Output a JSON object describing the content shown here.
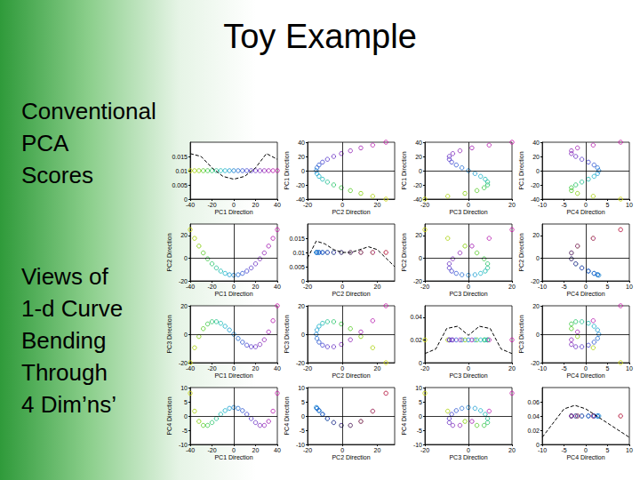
{
  "slide": {
    "title": "Toy Example",
    "text_blocks": [
      [
        "Conventional",
        "PCA",
        "Scores"
      ],
      [
        "Views of",
        "1-d Curve",
        "Bending",
        "Through",
        "4 Dim’ns’"
      ]
    ]
  },
  "chart_data": {
    "type": "scatter_matrix",
    "grid": false,
    "marker": "open_circle",
    "line_style": "dashed",
    "colors": [
      "#c8d400",
      "#a8d000",
      "#7fcc00",
      "#4fc81a",
      "#2ec43a",
      "#1cc060",
      "#14bc88",
      "#10b8b0",
      "#10b0c8",
      "#1098d0",
      "#1480d0",
      "#1c68d0",
      "#2850d0",
      "#3c3cd0",
      "#5030c8",
      "#6428c0",
      "#7820b8",
      "#8c1cb4",
      "#a018b0",
      "#b414ac",
      "#c810a8"
    ],
    "dimensions": [
      {
        "name": "PC1 Direction",
        "lim": [
          -40,
          40
        ],
        "ticks": [
          -40,
          -20,
          0,
          20,
          40
        ],
        "values": [
          -40,
          -36,
          -32,
          -28,
          -24,
          -20,
          -16,
          -12,
          -8,
          -4,
          0,
          4,
          8,
          12,
          16,
          20,
          24,
          28,
          32,
          36,
          40
        ],
        "density": {
          "x": [
            -40,
            -30,
            -20,
            -10,
            0,
            10,
            20,
            30,
            40
          ],
          "y": [
            0.016,
            0.015,
            0.011,
            0.008,
            0.007,
            0.008,
            0.011,
            0.016,
            0.014
          ],
          "ylim": [
            0,
            0.02
          ],
          "yticks": [
            0,
            0.005,
            0.01,
            0.015
          ],
          "point_height": 0.01
        }
      },
      {
        "name": "PC2 Direction",
        "lim": [
          -20,
          30
        ],
        "ticks": [
          -20,
          0,
          20
        ],
        "values": [
          25,
          17.4,
          10.6,
          4.6,
          -0.6,
          -5,
          -8.6,
          -11.4,
          -13.4,
          -14.6,
          -15,
          -14.6,
          -13.4,
          -11.4,
          -8.6,
          -5,
          -0.6,
          4.6,
          10.6,
          17.4,
          25
        ],
        "density": {
          "x": [
            -20,
            -15,
            -10,
            -5,
            0,
            5,
            10,
            15,
            20,
            25,
            30
          ],
          "y": [
            0.008,
            0.014,
            0.013,
            0.011,
            0.01,
            0.01,
            0.011,
            0.012,
            0.011,
            0.008,
            0.005
          ],
          "ylim": [
            0,
            0.02
          ],
          "yticks": [
            0,
            0.005,
            0.01,
            0.015
          ],
          "point_height": 0.01
        }
      },
      {
        "name": "PC3 Direction",
        "lim": [
          -20,
          20
        ],
        "ticks": [
          -20,
          0,
          20
        ],
        "values": [
          -20,
          -9.5,
          -1.6,
          3.9,
          7.2,
          8.8,
          8.8,
          7.7,
          5.6,
          3,
          0,
          -3,
          -5.6,
          -7.7,
          -8.8,
          -8.8,
          -7.2,
          -3.9,
          1.6,
          9.5,
          20
        ],
        "density": {
          "x": [
            -20,
            -15,
            -10,
            -5,
            0,
            5,
            10,
            15,
            20
          ],
          "y": [
            0.008,
            0.012,
            0.03,
            0.032,
            0.024,
            0.032,
            0.03,
            0.012,
            0.008
          ],
          "ylim": [
            0,
            0.05
          ],
          "yticks": [
            0,
            0.02,
            0.04
          ],
          "point_height": 0.02
        }
      },
      {
        "name": "PC4 Direction",
        "lim": [
          -10,
          10
        ],
        "ticks": [
          -10,
          -5,
          0,
          5,
          10
        ],
        "values": [
          8,
          1.7,
          -1.9,
          -3.3,
          -3.3,
          -2.3,
          -0.9,
          0.6,
          1.9,
          2.7,
          3,
          2.7,
          1.9,
          0.6,
          -0.9,
          -2.3,
          -3.3,
          -3.3,
          -1.9,
          1.7,
          8
        ],
        "density": {
          "x": [
            -10,
            -7.5,
            -5,
            -2.5,
            0,
            2.5,
            5,
            7.5,
            10
          ],
          "y": [
            0.01,
            0.03,
            0.05,
            0.055,
            0.05,
            0.04,
            0.03,
            0.02,
            0.01
          ],
          "ylim": [
            0,
            0.08
          ],
          "yticks": [
            0,
            0.02,
            0.04,
            0.06
          ],
          "point_height": 0.04
        }
      }
    ]
  }
}
